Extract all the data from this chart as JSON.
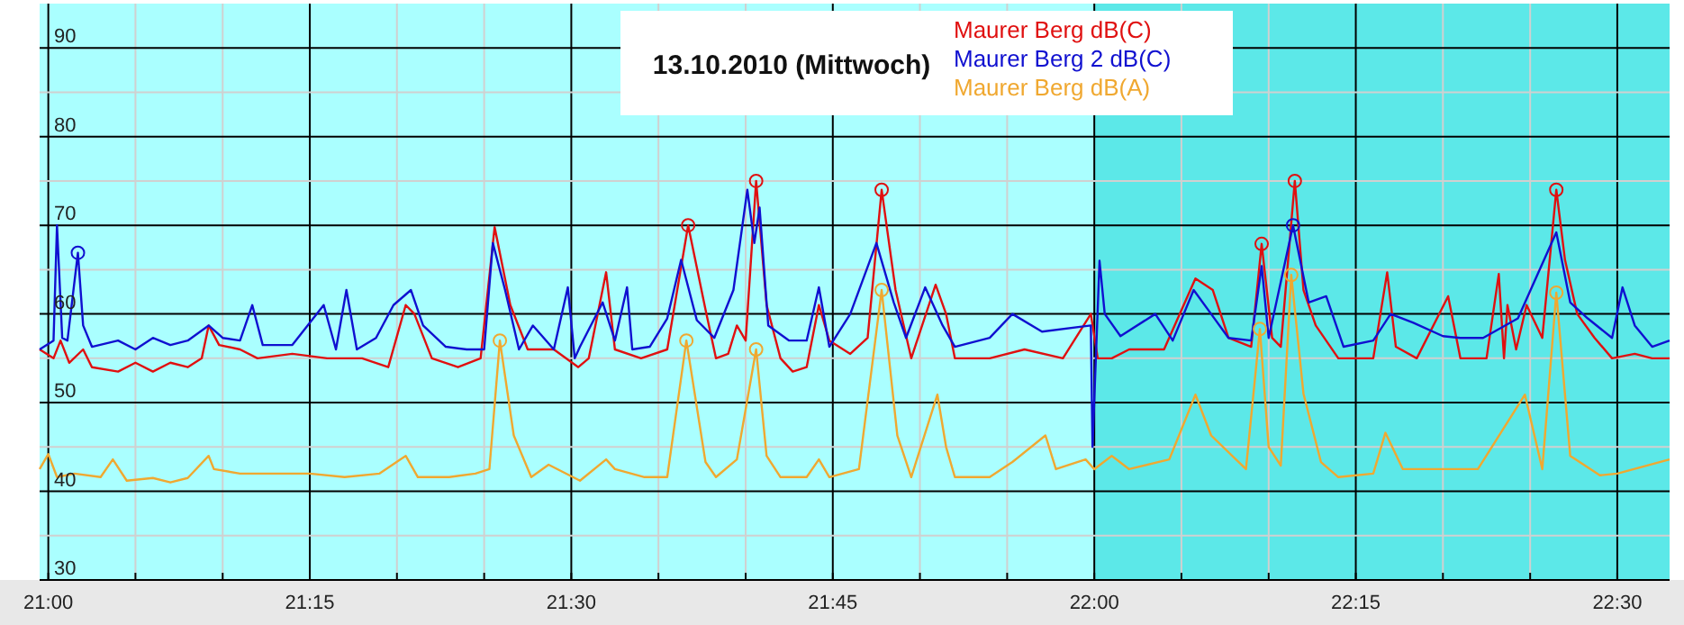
{
  "chart_data": {
    "type": "line",
    "title": "13.10.2010 (Mittwoch)",
    "legend": "top",
    "grid": true,
    "xlim": [
      20.9917,
      22.55
    ],
    "ylim": [
      30,
      95
    ],
    "xticks": [
      {
        "value": 21,
        "label": "21:00"
      },
      {
        "value": 21.0833,
        "label": null
      },
      {
        "value": 21.1667,
        "label": null
      },
      {
        "value": 21.25,
        "label": "21:15"
      },
      {
        "value": 21.3333,
        "label": null
      },
      {
        "value": 21.4167,
        "label": null
      },
      {
        "value": 21.5,
        "label": "21:30"
      },
      {
        "value": 21.5833,
        "label": null
      },
      {
        "value": 21.6667,
        "label": null
      },
      {
        "value": 21.75,
        "label": "21:45"
      },
      {
        "value": 21.8333,
        "label": null
      },
      {
        "value": 21.9167,
        "label": null
      },
      {
        "value": 22,
        "label": "22:00"
      },
      {
        "value": 22.0833,
        "label": null
      },
      {
        "value": 22.1667,
        "label": null
      },
      {
        "value": 22.25,
        "label": "22:15"
      },
      {
        "value": 22.3333,
        "label": null
      },
      {
        "value": 22.4167,
        "label": null
      },
      {
        "value": 22.5,
        "label": "22:30"
      }
    ],
    "yticks": [
      30,
      {
        "value": 35,
        "label": null
      },
      40,
      {
        "value": 45,
        "label": null
      },
      50,
      {
        "value": 55,
        "label": null
      },
      60,
      {
        "value": 65,
        "label": null
      },
      70,
      {
        "value": 75,
        "label": null
      },
      80,
      {
        "value": 85,
        "label": null
      },
      90
    ],
    "bands": [
      {
        "axis": "x",
        "from": 22,
        "to": 22.55,
        "color": "#5ce8e8"
      }
    ],
    "series": [
      {
        "name": "Maurer Berg dB(A)",
        "marker": "none",
        "color": "#f0a830",
        "x": [
          20.9917,
          21,
          21.0083,
          21.025,
          21.05,
          21.0617,
          21.075,
          21.1,
          21.1167,
          21.1333,
          21.1533,
          21.1583,
          21.1833,
          21.2167,
          21.25,
          21.2833,
          21.3167,
          21.3417,
          21.3533,
          21.3833,
          21.4083,
          21.4217,
          21.4317,
          21.445,
          21.4617,
          21.4783,
          21.5083,
          21.5333,
          21.5417,
          21.57,
          21.5917,
          21.61,
          21.6283,
          21.6383,
          21.6583,
          21.6767,
          21.6867,
          21.7,
          21.725,
          21.7367,
          21.7467,
          21.775,
          21.7967,
          21.8117,
          21.825,
          21.85,
          21.8583,
          21.8667,
          21.9,
          21.9217,
          21.9533,
          21.9633,
          21.9917,
          22,
          22.0167,
          22.0333,
          22.0717,
          22.0967,
          22.1117,
          22.145,
          22.1583,
          22.1667,
          22.1783,
          22.1883,
          22.2,
          22.2167,
          22.2333,
          22.2667,
          22.2783,
          22.295,
          22.3333,
          22.3667,
          22.4117,
          22.4283,
          22.4417,
          22.455,
          22.4833,
          22.5,
          22.55
        ],
        "values": [
          42.5,
          44.2,
          41.6,
          42,
          41.6,
          43.6,
          41.2,
          41.5,
          41,
          41.5,
          44,
          42.5,
          42,
          42,
          42,
          41.6,
          42,
          44,
          41.6,
          41.6,
          42,
          42.5,
          57,
          46.3,
          41.6,
          43,
          41.2,
          43.6,
          42.5,
          41.6,
          41.6,
          57,
          43.3,
          41.6,
          43.6,
          56,
          44,
          41.6,
          41.6,
          43.6,
          41.6,
          42.5,
          62.7,
          46.3,
          41.6,
          50.9,
          45,
          41.6,
          41.6,
          43.3,
          46.3,
          42.5,
          43.6,
          42.5,
          44,
          42.5,
          43.6,
          50.9,
          46.3,
          42.5,
          58.3,
          45,
          42.9,
          64.4,
          51,
          43.3,
          41.6,
          42,
          46.6,
          42.5,
          42.5,
          42.5,
          50.9,
          42.5,
          62.4,
          44,
          41.8,
          42,
          43.6
        ]
      },
      {
        "name": "Maurer Berg dB(C)",
        "marker": "none",
        "color": "#e01010",
        "x": [
          20.9917,
          21.005,
          21.0117,
          21.02,
          21.0333,
          21.0417,
          21.0667,
          21.0833,
          21.1,
          21.1167,
          21.1333,
          21.1467,
          21.1533,
          21.1633,
          21.1833,
          21.2,
          21.2333,
          21.2667,
          21.3,
          21.325,
          21.3417,
          21.35,
          21.3667,
          21.3917,
          21.4133,
          21.4267,
          21.4417,
          21.4583,
          21.4833,
          21.5067,
          21.5167,
          21.5333,
          21.5417,
          21.5667,
          21.5917,
          21.6117,
          21.6283,
          21.6383,
          21.65,
          21.6583,
          21.6667,
          21.6767,
          21.6867,
          21.7,
          21.7117,
          21.725,
          21.7367,
          21.7467,
          21.7667,
          21.7833,
          21.7967,
          21.81,
          21.825,
          21.8483,
          21.8583,
          21.8667,
          21.9,
          21.9333,
          21.97,
          21.9967,
          22.0033,
          22.0167,
          22.0333,
          22.0667,
          22.0967,
          22.1133,
          22.1283,
          22.15,
          22.16,
          22.17,
          22.1783,
          22.1917,
          22.2,
          22.2117,
          22.2333,
          22.2667,
          22.28,
          22.2883,
          22.3083,
          22.3383,
          22.35,
          22.375,
          22.3867,
          22.3917,
          22.395,
          22.4033,
          22.4133,
          22.4283,
          22.4417,
          22.45,
          22.4617,
          22.4783,
          22.495,
          22.5167,
          22.5333,
          22.55
        ],
        "values": [
          56,
          55,
          57,
          54.5,
          56,
          54,
          53.5,
          54.5,
          53.5,
          54.5,
          54,
          55,
          58.7,
          56.5,
          56,
          55,
          55.5,
          55,
          55,
          54,
          61,
          60,
          55,
          54,
          55,
          69.8,
          61,
          56,
          56,
          54,
          55,
          64.7,
          56,
          55,
          56,
          70,
          60.5,
          55,
          55.5,
          58.7,
          57,
          75,
          61,
          55,
          53.5,
          54,
          61,
          57,
          55.5,
          57.3,
          74,
          62.7,
          55,
          63.3,
          60,
          55,
          55,
          56,
          55,
          60,
          55,
          55,
          56,
          56,
          64,
          62.7,
          57.3,
          56.3,
          67.9,
          57.3,
          56.3,
          75,
          62.7,
          58.7,
          55,
          55,
          64.7,
          56.3,
          55,
          62,
          55,
          55,
          64.5,
          55,
          61,
          56,
          61,
          57.3,
          74,
          66.1,
          60,
          57.3,
          55,
          55.5,
          55,
          55
        ]
      },
      {
        "name": "Maurer Berg 2 dB(C)",
        "marker": "none",
        "color": "#1010d0",
        "x": [
          20.9917,
          21.005,
          21.0083,
          21.0133,
          21.0183,
          21.0283,
          21.0333,
          21.0417,
          21.0667,
          21.0833,
          21.1,
          21.1167,
          21.1333,
          21.1533,
          21.1667,
          21.1833,
          21.195,
          21.205,
          21.2333,
          21.2633,
          21.275,
          21.285,
          21.295,
          21.3133,
          21.33,
          21.3467,
          21.3583,
          21.38,
          21.4,
          21.4167,
          21.425,
          21.4367,
          21.45,
          21.4633,
          21.4833,
          21.4967,
          21.5033,
          21.5083,
          21.53,
          21.5417,
          21.5533,
          21.5583,
          21.575,
          21.5917,
          21.605,
          21.62,
          21.6367,
          21.655,
          21.6683,
          21.675,
          21.68,
          21.6883,
          21.7083,
          21.725,
          21.7367,
          21.7467,
          21.7667,
          21.7917,
          21.8083,
          21.82,
          21.8383,
          21.855,
          21.8667,
          21.9,
          21.9217,
          21.95,
          21.9967,
          21.9983,
          22.005,
          22.01,
          22.025,
          22.0583,
          22.075,
          22.095,
          22.1117,
          22.1283,
          22.15,
          22.16,
          22.1667,
          22.19,
          22.205,
          22.2217,
          22.2383,
          22.2667,
          22.2833,
          22.305,
          22.3333,
          22.35,
          22.3717,
          22.405,
          22.4417,
          22.455,
          22.4717,
          22.495,
          22.505,
          22.5167,
          22.5333,
          22.55
        ],
        "values": [
          56,
          57,
          70,
          57.3,
          57,
          66.9,
          58.7,
          56.3,
          57,
          56,
          57.3,
          56.5,
          57,
          58.7,
          57.3,
          57,
          61,
          56.5,
          56.5,
          61,
          56,
          62.7,
          56,
          57.3,
          61,
          62.7,
          58.7,
          56.3,
          56,
          56,
          68,
          62.7,
          56,
          58.7,
          56,
          63,
          55,
          56.3,
          61.3,
          57,
          63,
          56,
          56.3,
          59.5,
          66.1,
          59.3,
          57.3,
          62.7,
          74,
          68,
          72,
          58.7,
          57,
          57,
          63,
          56.3,
          60,
          68,
          61.3,
          57.3,
          63,
          58.7,
          56.3,
          57.3,
          60,
          58,
          58.7,
          45,
          66,
          60,
          57.5,
          60,
          57,
          62.7,
          60,
          57.3,
          57,
          65.4,
          57.3,
          70,
          61.3,
          62,
          56.3,
          57,
          60,
          59,
          57.5,
          57.3,
          57.3,
          59.5,
          69.2,
          61.3,
          59.5,
          57.3,
          63,
          58.7,
          56.3,
          57
        ]
      },
      {
        "type": "scatter",
        "marker": "circle",
        "color": "#f0a830",
        "x": [
          21.4317,
          21.61,
          21.6767,
          21.7967,
          22.1583,
          22.1883,
          22.4417
        ],
        "values": [
          57,
          57,
          56,
          62.7,
          58.3,
          64.4,
          62.4
        ]
      },
      {
        "type": "scatter",
        "marker": "circle",
        "color": "#e01010",
        "x": [
          21.6117,
          21.6767,
          21.7967,
          22.16,
          22.1917,
          22.4417
        ],
        "values": [
          70,
          75,
          74,
          67.9,
          75,
          74
        ]
      },
      {
        "type": "scatter",
        "marker": "circle",
        "color": "#1010d0",
        "x": [
          21.0283,
          22.19
        ],
        "values": [
          66.9,
          70
        ]
      }
    ]
  }
}
